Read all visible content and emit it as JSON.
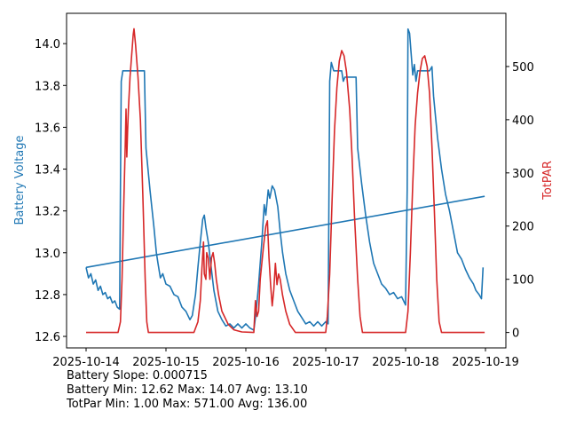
{
  "chart_data": {
    "type": "line",
    "xlabel": "",
    "x_tick_labels": [
      "2025-10-14",
      "2025-10-15",
      "2025-10-16",
      "2025-10-17",
      "2025-10-18",
      "2025-10-19"
    ],
    "x_unit": "days since 2025-10-14",
    "ylabel_left": "Battery Voltage",
    "ylabel_right": "TotPAR",
    "ylim_left": [
      12.545,
      14.145
    ],
    "ylim_right": [
      -29,
      600
    ],
    "yticks_left": [
      "12.6",
      "12.8",
      "13.0",
      "13.2",
      "13.4",
      "13.6",
      "13.8",
      "14.0"
    ],
    "yticks_right": [
      "0",
      "100",
      "200",
      "300",
      "400",
      "500"
    ],
    "colors": {
      "battery": "#1f77b4",
      "par": "#d62728"
    },
    "series": [
      {
        "name": "Battery Voltage",
        "axis": "left",
        "color": "#1f77b4",
        "points": [
          [
            0,
            12.93
          ],
          [
            0.03,
            12.88
          ],
          [
            0.06,
            12.9
          ],
          [
            0.09,
            12.85
          ],
          [
            0.12,
            12.87
          ],
          [
            0.15,
            12.82
          ],
          [
            0.18,
            12.84
          ],
          [
            0.21,
            12.8
          ],
          [
            0.24,
            12.81
          ],
          [
            0.27,
            12.78
          ],
          [
            0.3,
            12.79
          ],
          [
            0.33,
            12.76
          ],
          [
            0.36,
            12.77
          ],
          [
            0.39,
            12.74
          ],
          [
            0.42,
            12.73
          ],
          [
            0.43,
            13.3
          ],
          [
            0.44,
            13.82
          ],
          [
            0.46,
            13.87
          ],
          [
            0.73,
            13.87
          ],
          [
            0.75,
            13.5
          ],
          [
            0.8,
            13.3
          ],
          [
            0.85,
            13.12
          ],
          [
            0.88,
            13.0
          ],
          [
            0.9,
            12.95
          ],
          [
            0.93,
            12.88
          ],
          [
            0.96,
            12.9
          ],
          [
            1.0,
            12.85
          ],
          [
            1.05,
            12.84
          ],
          [
            1.1,
            12.8
          ],
          [
            1.15,
            12.79
          ],
          [
            1.2,
            12.74
          ],
          [
            1.25,
            12.72
          ],
          [
            1.3,
            12.68
          ],
          [
            1.33,
            12.7
          ],
          [
            1.37,
            12.8
          ],
          [
            1.4,
            12.93
          ],
          [
            1.43,
            13.05
          ],
          [
            1.46,
            13.16
          ],
          [
            1.48,
            13.18
          ],
          [
            1.5,
            13.12
          ],
          [
            1.53,
            13.05
          ],
          [
            1.56,
            12.95
          ],
          [
            1.6,
            12.82
          ],
          [
            1.65,
            12.72
          ],
          [
            1.7,
            12.68
          ],
          [
            1.75,
            12.65
          ],
          [
            1.8,
            12.66
          ],
          [
            1.85,
            12.64
          ],
          [
            1.9,
            12.66
          ],
          [
            1.95,
            12.64
          ],
          [
            2.0,
            12.66
          ],
          [
            2.05,
            12.64
          ],
          [
            2.1,
            12.63
          ],
          [
            2.13,
            12.72
          ],
          [
            2.16,
            12.85
          ],
          [
            2.2,
            13.05
          ],
          [
            2.23,
            13.23
          ],
          [
            2.25,
            13.18
          ],
          [
            2.28,
            13.3
          ],
          [
            2.3,
            13.26
          ],
          [
            2.33,
            13.32
          ],
          [
            2.36,
            13.3
          ],
          [
            2.4,
            13.22
          ],
          [
            2.43,
            13.1
          ],
          [
            2.46,
            13.0
          ],
          [
            2.5,
            12.9
          ],
          [
            2.55,
            12.82
          ],
          [
            2.6,
            12.77
          ],
          [
            2.65,
            12.72
          ],
          [
            2.7,
            12.69
          ],
          [
            2.75,
            12.66
          ],
          [
            2.8,
            12.67
          ],
          [
            2.85,
            12.65
          ],
          [
            2.9,
            12.67
          ],
          [
            2.95,
            12.65
          ],
          [
            3.0,
            12.67
          ],
          [
            3.03,
            12.66
          ],
          [
            3.05,
            13.82
          ],
          [
            3.07,
            13.91
          ],
          [
            3.1,
            13.87
          ],
          [
            3.2,
            13.87
          ],
          [
            3.22,
            13.82
          ],
          [
            3.24,
            13.84
          ],
          [
            3.38,
            13.84
          ],
          [
            3.4,
            13.5
          ],
          [
            3.45,
            13.33
          ],
          [
            3.5,
            13.18
          ],
          [
            3.55,
            13.05
          ],
          [
            3.6,
            12.95
          ],
          [
            3.65,
            12.9
          ],
          [
            3.7,
            12.85
          ],
          [
            3.75,
            12.83
          ],
          [
            3.8,
            12.8
          ],
          [
            3.85,
            12.81
          ],
          [
            3.9,
            12.78
          ],
          [
            3.95,
            12.79
          ],
          [
            4.0,
            12.75
          ],
          [
            4.02,
            13.3
          ],
          [
            4.03,
            14.07
          ],
          [
            4.05,
            14.05
          ],
          [
            4.07,
            13.95
          ],
          [
            4.09,
            13.85
          ],
          [
            4.11,
            13.9
          ],
          [
            4.13,
            13.82
          ],
          [
            4.15,
            13.87
          ],
          [
            4.3,
            13.87
          ],
          [
            4.33,
            13.89
          ],
          [
            4.35,
            13.75
          ],
          [
            4.4,
            13.55
          ],
          [
            4.45,
            13.4
          ],
          [
            4.5,
            13.28
          ],
          [
            4.55,
            13.2
          ],
          [
            4.6,
            13.1
          ],
          [
            4.65,
            13.0
          ],
          [
            4.7,
            12.97
          ],
          [
            4.75,
            12.92
          ],
          [
            4.8,
            12.88
          ],
          [
            4.85,
            12.85
          ],
          [
            4.88,
            12.82
          ],
          [
            4.92,
            12.8
          ],
          [
            4.95,
            12.78
          ],
          [
            4.97,
            12.93
          ]
        ]
      },
      {
        "name": "TotPAR",
        "axis": "right",
        "color": "#d62728",
        "points": [
          [
            0,
            0
          ],
          [
            0.4,
            0
          ],
          [
            0.43,
            20
          ],
          [
            0.45,
            100
          ],
          [
            0.47,
            230
          ],
          [
            0.49,
            350
          ],
          [
            0.5,
            420
          ],
          [
            0.51,
            330
          ],
          [
            0.52,
            380
          ],
          [
            0.53,
            420
          ],
          [
            0.55,
            480
          ],
          [
            0.57,
            520
          ],
          [
            0.58,
            540
          ],
          [
            0.59,
            560
          ],
          [
            0.6,
            571
          ],
          [
            0.62,
            540
          ],
          [
            0.65,
            480
          ],
          [
            0.68,
            400
          ],
          [
            0.71,
            260
          ],
          [
            0.74,
            100
          ],
          [
            0.76,
            20
          ],
          [
            0.78,
            0
          ],
          [
            1.35,
            0
          ],
          [
            1.4,
            20
          ],
          [
            1.43,
            60
          ],
          [
            1.45,
            120
          ],
          [
            1.47,
            170
          ],
          [
            1.48,
            110
          ],
          [
            1.5,
            100
          ],
          [
            1.51,
            150
          ],
          [
            1.53,
            140
          ],
          [
            1.55,
            100
          ],
          [
            1.57,
            140
          ],
          [
            1.59,
            150
          ],
          [
            1.61,
            130
          ],
          [
            1.63,
            100
          ],
          [
            1.66,
            70
          ],
          [
            1.7,
            40
          ],
          [
            1.78,
            15
          ],
          [
            1.85,
            5
          ],
          [
            1.95,
            1
          ],
          [
            2.1,
            0
          ],
          [
            2.12,
            60
          ],
          [
            2.14,
            30
          ],
          [
            2.16,
            40
          ],
          [
            2.18,
            100
          ],
          [
            2.22,
            160
          ],
          [
            2.25,
            200
          ],
          [
            2.27,
            210
          ],
          [
            2.29,
            140
          ],
          [
            2.31,
            90
          ],
          [
            2.33,
            50
          ],
          [
            2.35,
            80
          ],
          [
            2.37,
            130
          ],
          [
            2.39,
            90
          ],
          [
            2.41,
            110
          ],
          [
            2.43,
            100
          ],
          [
            2.46,
            70
          ],
          [
            2.5,
            40
          ],
          [
            2.55,
            15
          ],
          [
            2.62,
            0
          ],
          [
            3.0,
            0
          ],
          [
            3.02,
            30
          ],
          [
            3.05,
            110
          ],
          [
            3.08,
            250
          ],
          [
            3.11,
            380
          ],
          [
            3.14,
            460
          ],
          [
            3.17,
            510
          ],
          [
            3.2,
            530
          ],
          [
            3.23,
            520
          ],
          [
            3.26,
            490
          ],
          [
            3.3,
            420
          ],
          [
            3.33,
            330
          ],
          [
            3.36,
            220
          ],
          [
            3.4,
            100
          ],
          [
            3.43,
            30
          ],
          [
            3.46,
            0
          ],
          [
            4.0,
            0
          ],
          [
            4.03,
            40
          ],
          [
            4.06,
            150
          ],
          [
            4.09,
            280
          ],
          [
            4.12,
            390
          ],
          [
            4.15,
            450
          ],
          [
            4.18,
            490
          ],
          [
            4.21,
            515
          ],
          [
            4.24,
            520
          ],
          [
            4.27,
            500
          ],
          [
            4.3,
            450
          ],
          [
            4.33,
            350
          ],
          [
            4.36,
            230
          ],
          [
            4.39,
            100
          ],
          [
            4.42,
            20
          ],
          [
            4.45,
            0
          ],
          [
            4.99,
            0
          ]
        ]
      },
      {
        "name": "Battery Trend",
        "axis": "left",
        "color": "#1f77b4",
        "points": [
          [
            0,
            12.93
          ],
          [
            4.99,
            13.27
          ]
        ]
      }
    ]
  },
  "stats": {
    "slope": "Battery Slope: 0.000715",
    "battery": "Battery Min: 12.62 Max: 14.07 Avg: 13.10",
    "totpar": "TotPar Min: 1.00 Max: 571.00 Avg: 136.00"
  }
}
